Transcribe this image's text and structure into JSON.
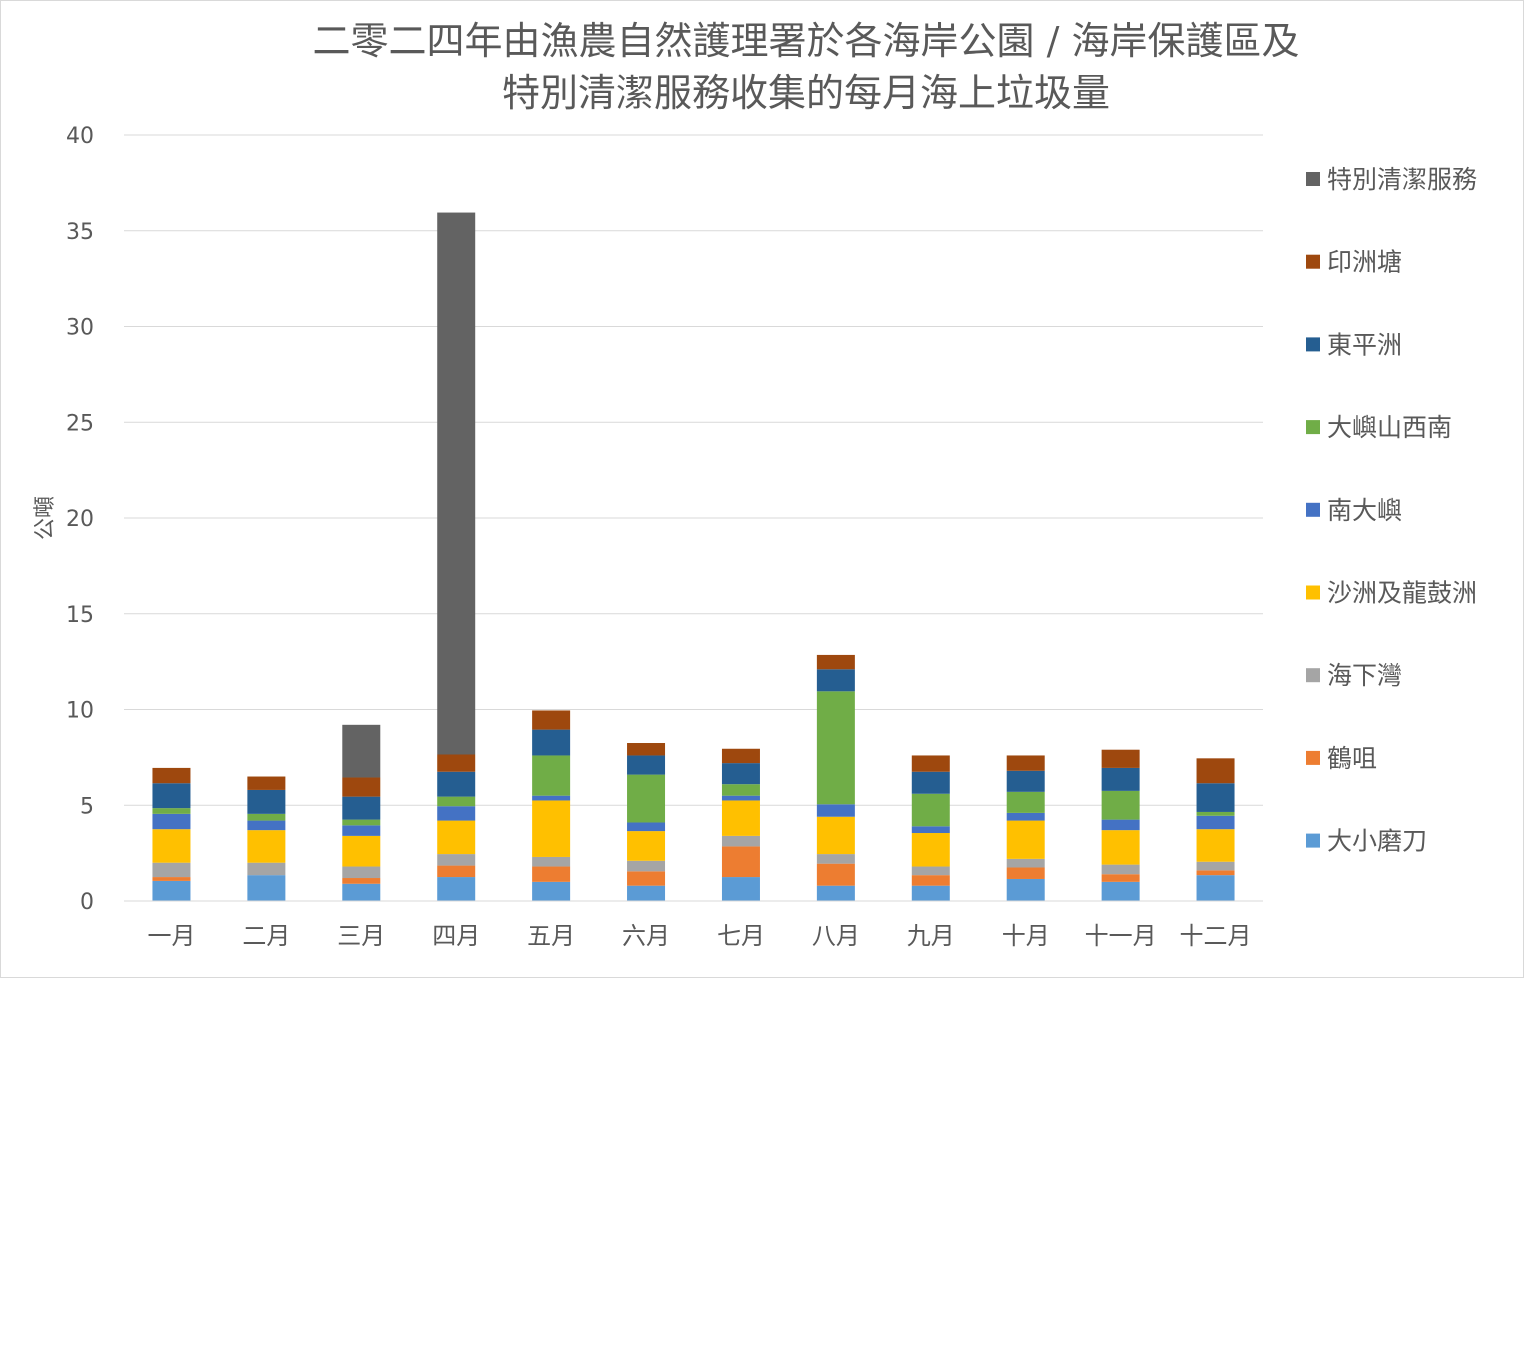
{
  "chart_data": {
    "type": "bar",
    "stacked": true,
    "title": [
      "二零二四年由漁農自然護理署於各海岸公園 / 海岸保護區及",
      "特別清潔服務收集的每月海上垃圾量"
    ],
    "ylabel": "公噸",
    "xlabel": "",
    "ylim": [
      0,
      40
    ],
    "yticks": [
      0,
      5,
      10,
      15,
      20,
      25,
      30,
      35,
      40
    ],
    "grid": true,
    "legend_position": "right",
    "categories": [
      "一月",
      "二月",
      "三月",
      "四月",
      "五月",
      "六月",
      "七月",
      "八月",
      "九月",
      "十月",
      "十一月",
      "十二月"
    ],
    "series": [
      {
        "name": "大小磨刀",
        "color": "#5b9bd5",
        "values": [
          1.05,
          1.35,
          0.9,
          1.25,
          1.0,
          0.8,
          1.25,
          0.8,
          0.8,
          1.15,
          1.0,
          1.35
        ]
      },
      {
        "name": "鶴咀",
        "color": "#ed7d31",
        "values": [
          0.2,
          0.0,
          0.3,
          0.6,
          0.8,
          0.75,
          1.6,
          1.15,
          0.55,
          0.6,
          0.4,
          0.25
        ]
      },
      {
        "name": "海下灣",
        "color": "#a5a5a5",
        "values": [
          0.75,
          0.65,
          0.6,
          0.6,
          0.5,
          0.55,
          0.55,
          0.5,
          0.45,
          0.45,
          0.5,
          0.45
        ]
      },
      {
        "name": "沙洲及龍鼓洲",
        "color": "#ffc000",
        "values": [
          1.75,
          1.7,
          1.6,
          1.75,
          2.95,
          1.55,
          1.85,
          1.95,
          1.75,
          2.0,
          1.8,
          1.7
        ]
      },
      {
        "name": "南大嶼",
        "color": "#4472c4",
        "values": [
          0.8,
          0.5,
          0.55,
          0.75,
          0.25,
          0.45,
          0.25,
          0.65,
          0.35,
          0.4,
          0.55,
          0.7
        ]
      },
      {
        "name": "大嶼山西南",
        "color": "#70ad47",
        "values": [
          0.3,
          0.35,
          0.3,
          0.5,
          2.1,
          2.5,
          0.6,
          5.9,
          1.7,
          1.1,
          1.5,
          0.2
        ]
      },
      {
        "name": "東平洲",
        "color": "#255e91",
        "values": [
          1.3,
          1.25,
          1.2,
          1.3,
          1.35,
          1.0,
          1.1,
          1.15,
          1.15,
          1.1,
          1.2,
          1.5
        ]
      },
      {
        "name": "印洲塘",
        "color": "#9e480e",
        "values": [
          0.8,
          0.7,
          1.0,
          0.9,
          1.0,
          0.65,
          0.75,
          0.75,
          0.85,
          0.8,
          0.95,
          1.3
        ]
      },
      {
        "name": "特別清潔服務",
        "color": "#636363",
        "values": [
          0.0,
          0.0,
          2.75,
          28.3,
          0.0,
          0.0,
          0.0,
          0.0,
          0.0,
          0.0,
          0.0,
          0.0
        ]
      }
    ]
  }
}
